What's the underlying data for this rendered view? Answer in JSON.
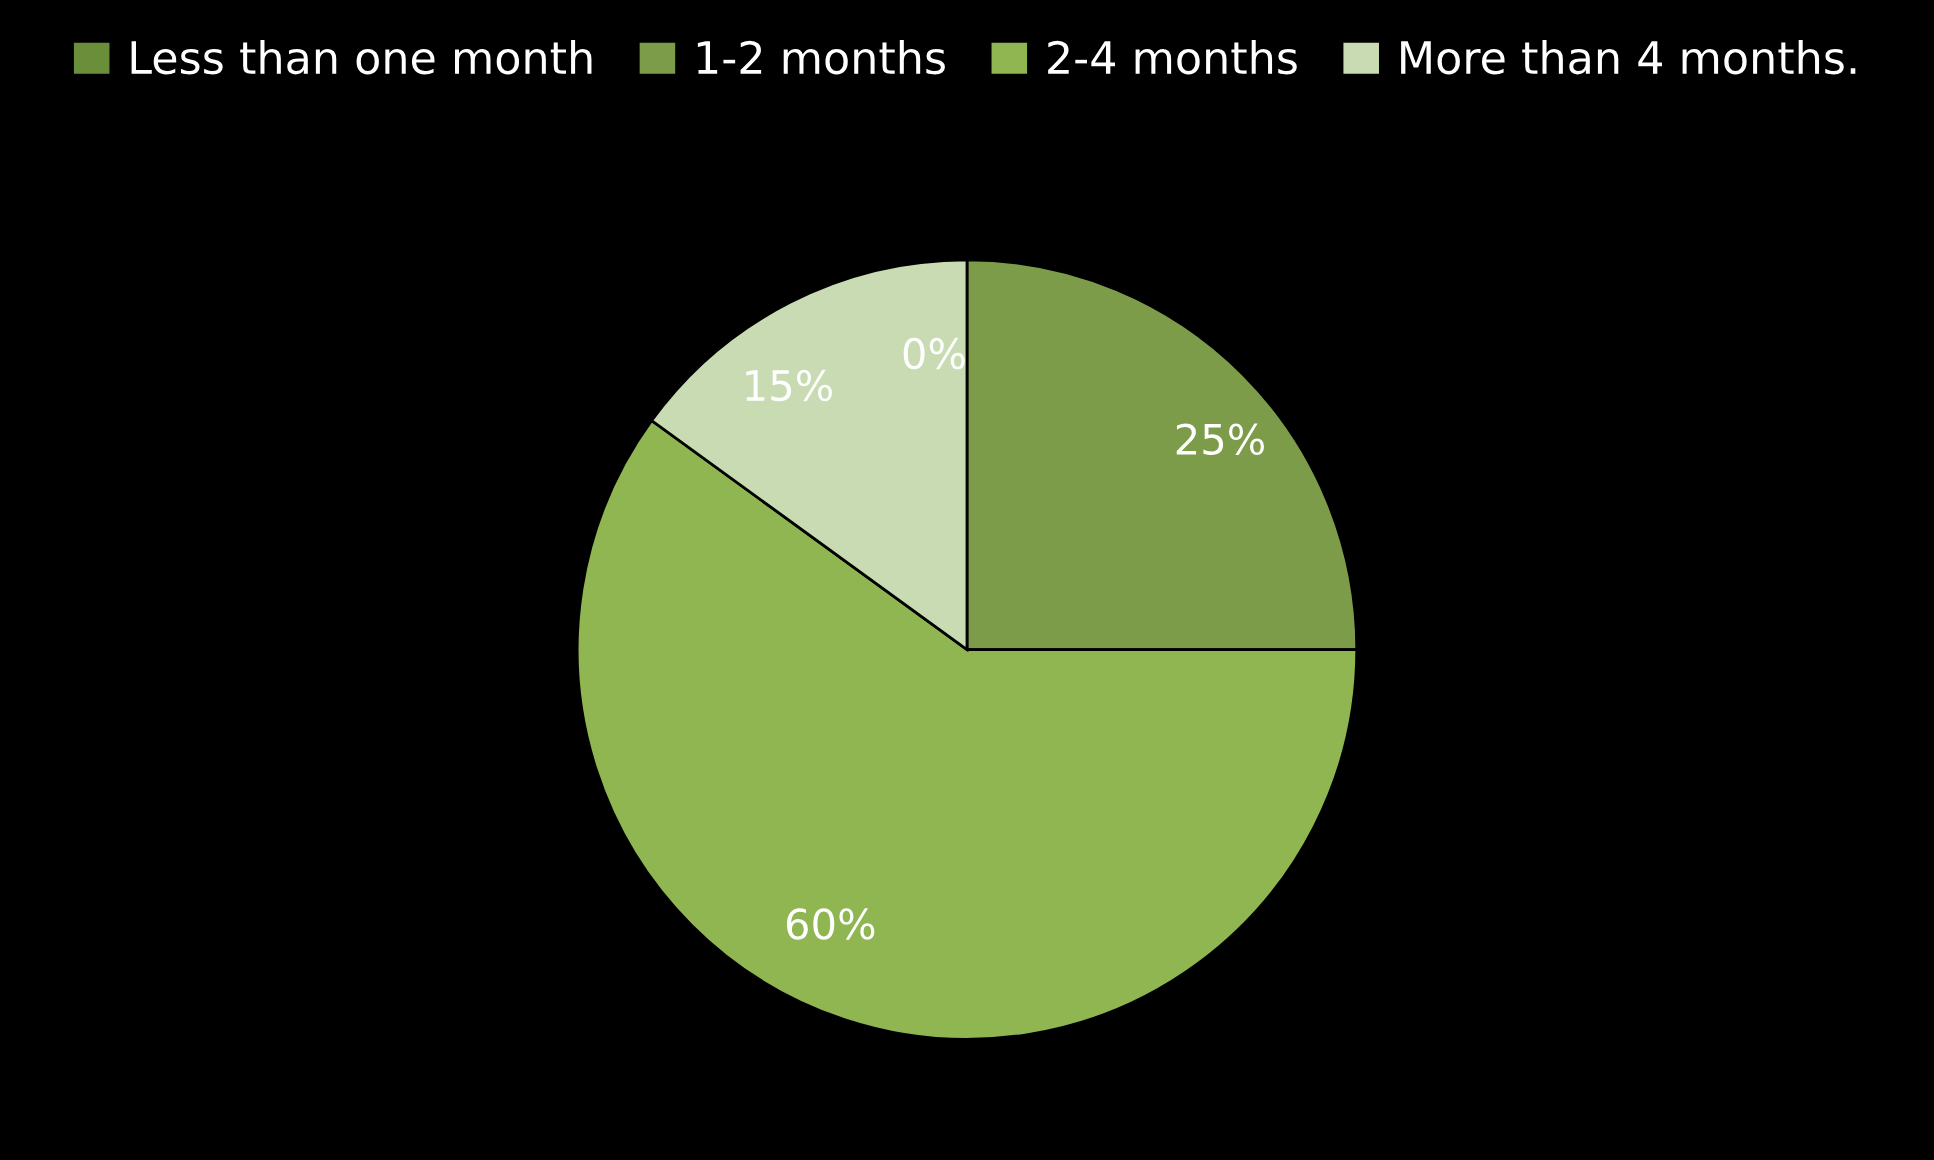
{
  "chart_data": {
    "type": "pie",
    "categories": [
      "Less than one month",
      "1-2 months",
      "2-4 months",
      "More than 4 months."
    ],
    "values": [
      0,
      25,
      60,
      15
    ],
    "value_labels": [
      "0%",
      "25%",
      "60%",
      "15%"
    ],
    "colors": [
      "#6b8e3a",
      "#7d9c4a",
      "#8fb650",
      "#c9dbb2"
    ],
    "legend": "top"
  }
}
